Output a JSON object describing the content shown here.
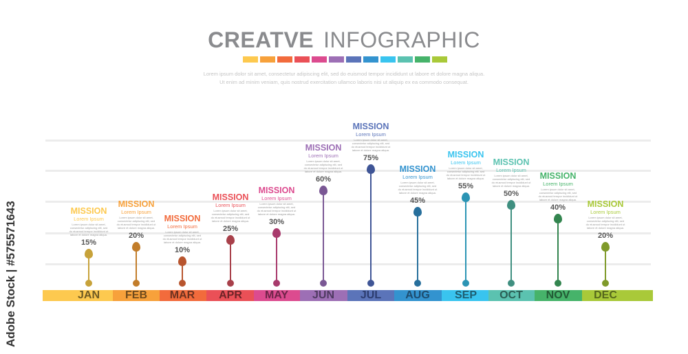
{
  "header": {
    "title_bold": "CREATVE",
    "title_light": "INFOGRAPHIC",
    "line1": "Lorem ipsum dolor sit amet, consectetur adipiscing elit, sed do euismod tempor incididunt ut labore et dolore magna aliqua.",
    "line2": "Ut enim ad minim veniam, quis nostrud exercitation ullamco laboris nisi ut aliquip ex ea commodo consequat."
  },
  "watermark": "Adobe Stock | #575571643",
  "item_title": "MISSION",
  "item_sub": "Lorem Ipsum",
  "item_desc": "Lorem ipsum dolor sit amet, consectetur adipiscing elit, sed do eiusmod tempor incididunt ut labore et dolore magna aliqua.",
  "months": [
    {
      "label": "JAN",
      "value": 15,
      "pct": "15%",
      "color": "#fdc94f",
      "dark": "#c7a23a",
      "text": "#6e5a23"
    },
    {
      "label": "FEB",
      "value": 20,
      "pct": "20%",
      "color": "#f7a13b",
      "dark": "#c27d2a",
      "text": "#6e4a1c"
    },
    {
      "label": "MAR",
      "value": 10,
      "pct": "10%",
      "color": "#f26b3c",
      "dark": "#b8552e",
      "text": "#6e3220"
    },
    {
      "label": "APR",
      "value": 25,
      "pct": "25%",
      "color": "#ea5057",
      "dark": "#a8404a",
      "text": "#6e2428"
    },
    {
      "label": "MAY",
      "value": 30,
      "pct": "30%",
      "color": "#dc4b8f",
      "dark": "#a83a6c",
      "text": "#6e2448"
    },
    {
      "label": "JUN",
      "value": 60,
      "pct": "60%",
      "color": "#9d6fb5",
      "dark": "#7a5794",
      "text": "#4e3a60"
    },
    {
      "label": "JUL",
      "value": 75,
      "pct": "75%",
      "color": "#5b74b9",
      "dark": "#3f5596",
      "text": "#2c3c6e"
    },
    {
      "label": "AUG",
      "value": 45,
      "pct": "45%",
      "color": "#3393cf",
      "dark": "#276f9c",
      "text": "#1d4c6e"
    },
    {
      "label": "SEP",
      "value": 55,
      "pct": "55%",
      "color": "#39c4ef",
      "dark": "#2b94b4",
      "text": "#1e5d70"
    },
    {
      "label": "OCT",
      "value": 50,
      "pct": "50%",
      "color": "#5bc2b0",
      "dark": "#3f8f80",
      "text": "#2a5e54"
    },
    {
      "label": "NOV",
      "value": 40,
      "pct": "40%",
      "color": "#46b36a",
      "dark": "#33854f",
      "text": "#225a35"
    },
    {
      "label": "DEC",
      "value": 20,
      "pct": "20%",
      "color": "#a9c939",
      "dark": "#7f9a2a",
      "text": "#55661c"
    }
  ]
}
